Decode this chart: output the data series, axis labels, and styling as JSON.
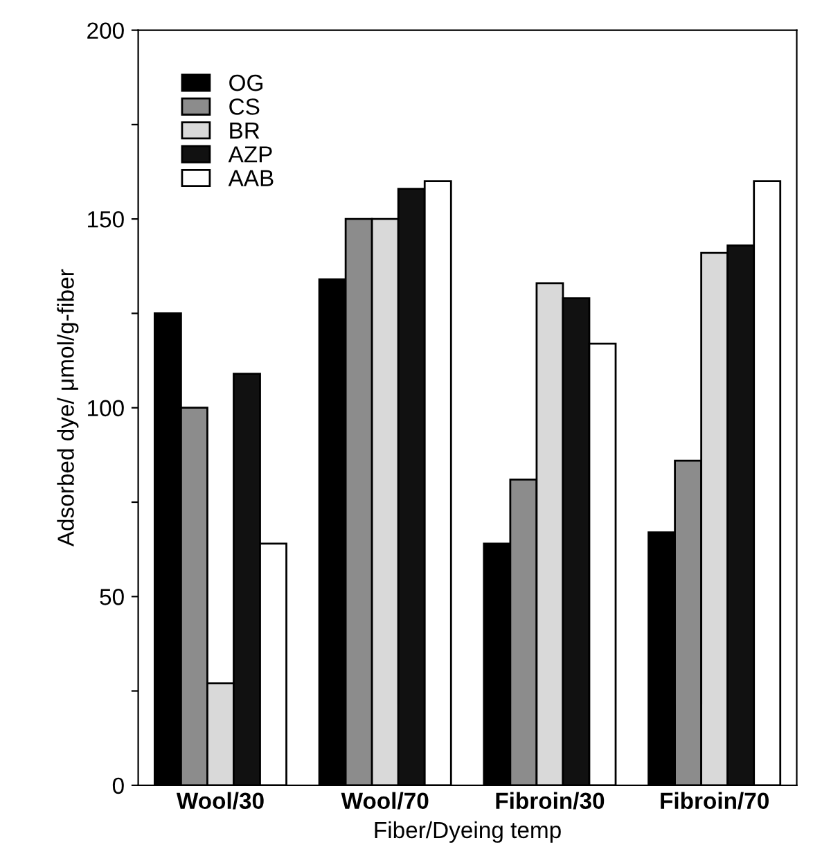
{
  "chart_data": {
    "type": "bar",
    "xlabel": "Fiber/Dyeing temp",
    "ylabel": "Adsorbed dye/ μmol/g-fiber",
    "categories": [
      "Wool/30",
      "Wool/70",
      "Fibroin/30",
      "Fibroin/70"
    ],
    "series": [
      {
        "name": "OG",
        "color": "#000000",
        "values": [
          125,
          134,
          64,
          67
        ]
      },
      {
        "name": "CS",
        "color": "#8c8c8c",
        "values": [
          100,
          150,
          81,
          86
        ]
      },
      {
        "name": "BR",
        "color": "#d9d9d9",
        "values": [
          27,
          150,
          133,
          141
        ]
      },
      {
        "name": "AZP",
        "color": "#111111",
        "values": [
          109,
          158,
          129,
          143
        ]
      },
      {
        "name": "AAB",
        "color": "#ffffff",
        "values": [
          64,
          160,
          117,
          160
        ]
      }
    ],
    "ylim": [
      0,
      200
    ],
    "yticks": [
      0,
      {
        "value": 25,
        "label": null
      },
      50,
      {
        "value": 75,
        "label": null
      },
      100,
      {
        "value": 125,
        "label": null
      },
      150,
      {
        "value": 175,
        "label": null
      },
      200
    ],
    "legend": "top left",
    "grid": false
  }
}
